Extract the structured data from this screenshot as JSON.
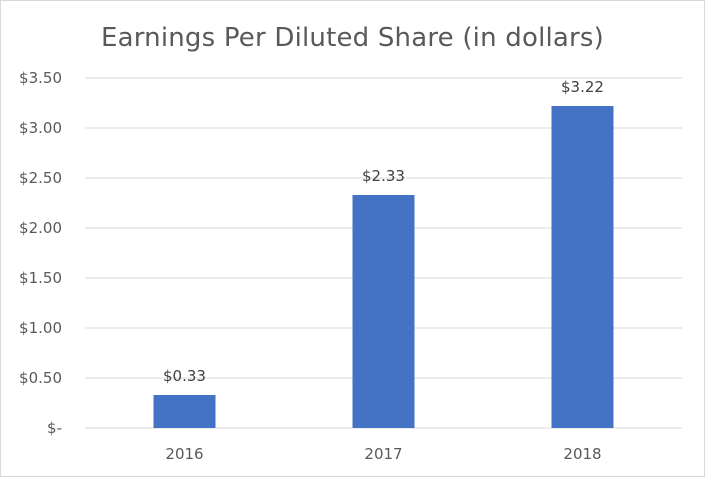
{
  "chart_data": {
    "type": "bar",
    "title": "Earnings Per Diluted Share (in dollars)",
    "xlabel": "",
    "ylabel": "",
    "categories": [
      "2016",
      "2017",
      "2018"
    ],
    "values": [
      0.33,
      2.33,
      3.22
    ],
    "data_labels": [
      "$0.33",
      "$2.33",
      "$3.22"
    ],
    "ylim": [
      0,
      3.5
    ],
    "yticks": [
      0,
      0.5,
      1.0,
      1.5,
      2.0,
      2.5,
      3.0,
      3.5
    ],
    "ytick_labels": [
      "$-",
      "$0.50",
      "$1.00",
      "$1.50",
      "$2.00",
      "$2.50",
      "$3.00",
      "$3.50"
    ],
    "grid": true,
    "legend": "none",
    "bar_color": "#4472c4",
    "grid_color": "#d9d9d9"
  }
}
